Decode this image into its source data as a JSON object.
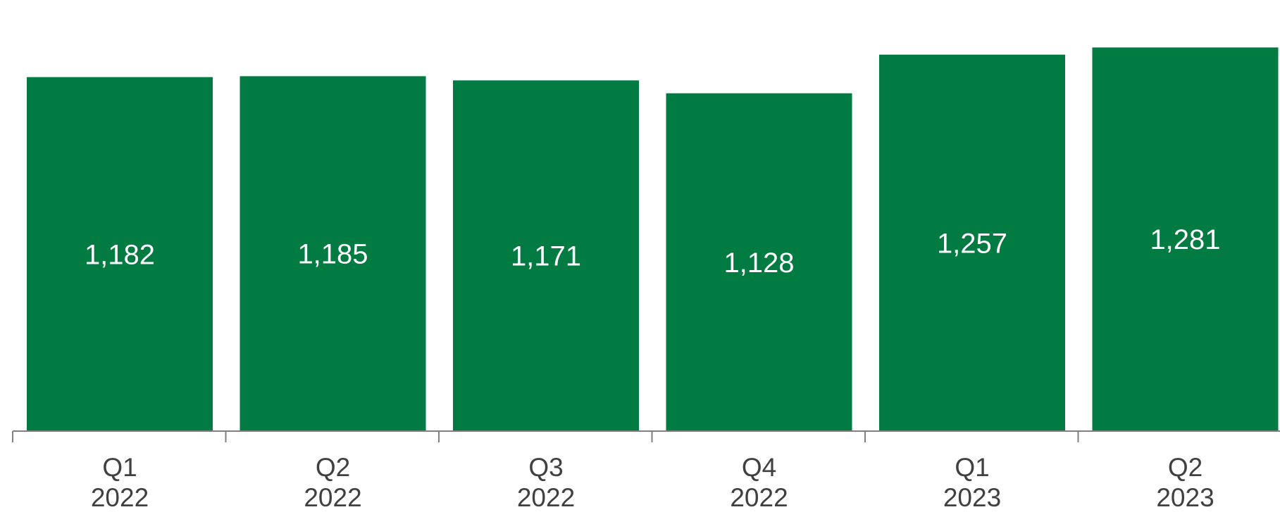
{
  "chart_data": {
    "type": "bar",
    "title": "",
    "xlabel": "",
    "ylabel": "",
    "categories": [
      [
        "Q1",
        "2022"
      ],
      [
        "Q2",
        "2022"
      ],
      [
        "Q3",
        "2022"
      ],
      [
        "Q4",
        "2022"
      ],
      [
        "Q1",
        "2023"
      ],
      [
        "Q2",
        "2023"
      ]
    ],
    "values": [
      1182,
      1185,
      1171,
      1128,
      1257,
      1281
    ],
    "value_labels": [
      "1,182",
      "1,185",
      "1,171",
      "1,128",
      "1,257",
      "1,281"
    ],
    "ylim": [
      0,
      1300
    ],
    "grid": false,
    "legend": "none",
    "bar_color": "#017b41",
    "axis_color": "#808080",
    "label_color": "#404040",
    "value_label_color": "#ffffff"
  }
}
